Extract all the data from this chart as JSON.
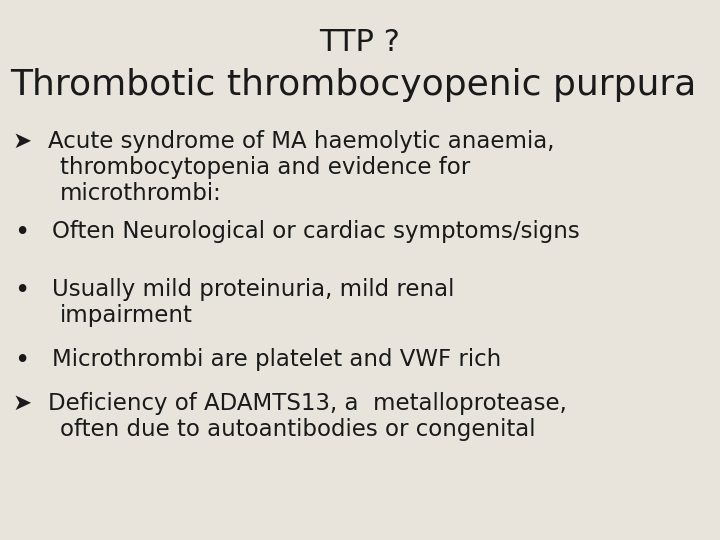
{
  "background_color": "#e8e4dc",
  "title_line1": "TTP ?",
  "title_line2": "Thrombotic thrombocyopenic purpura",
  "title1_fontsize": 22,
  "title2_fontsize": 26,
  "title_color": "#1a1a1a",
  "body_fontsize": 16.5,
  "body_color": "#1a1a1a",
  "font_family": "DejaVu Sans",
  "lines": [
    {
      "type": "arrow",
      "texts": [
        "Acute syndrome of MA haemolytic anaemia,",
        "thrombocytopenia and evidence for",
        "microthrombi:"
      ]
    },
    {
      "type": "bullet",
      "texts": [
        "Often Neurological or cardiac symptoms/signs"
      ]
    },
    {
      "type": "bullet",
      "texts": [
        "Usually mild proteinuria, mild renal",
        "impairment"
      ]
    },
    {
      "type": "bullet",
      "texts": [
        "Microthrombi are platelet and VWF rich"
      ]
    },
    {
      "type": "arrow",
      "texts": [
        "Deficiency of ADAMTS13, a  metalloprotease,",
        "often due to autoantibodies or congenital"
      ]
    }
  ]
}
